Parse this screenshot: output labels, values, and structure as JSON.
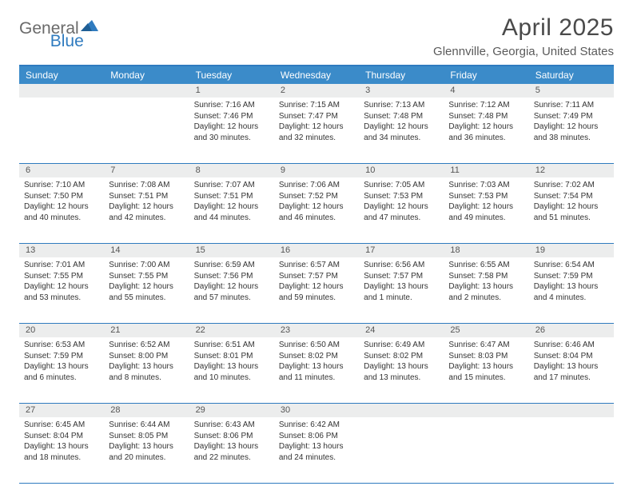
{
  "logo": {
    "text1": "General",
    "text2": "Blue"
  },
  "title": "April 2025",
  "location": "Glennville, Georgia, United States",
  "colors": {
    "accent": "#3b8bc9",
    "accent_border": "#2f7bbf",
    "daynum_bg": "#eceded",
    "text_dark": "#333333",
    "text_mid": "#5a5a5a"
  },
  "daysOfWeek": [
    "Sunday",
    "Monday",
    "Tuesday",
    "Wednesday",
    "Thursday",
    "Friday",
    "Saturday"
  ],
  "weeks": [
    [
      null,
      null,
      {
        "n": "1",
        "sr": "7:16 AM",
        "ss": "7:46 PM",
        "dl": "12 hours and 30 minutes."
      },
      {
        "n": "2",
        "sr": "7:15 AM",
        "ss": "7:47 PM",
        "dl": "12 hours and 32 minutes."
      },
      {
        "n": "3",
        "sr": "7:13 AM",
        "ss": "7:48 PM",
        "dl": "12 hours and 34 minutes."
      },
      {
        "n": "4",
        "sr": "7:12 AM",
        "ss": "7:48 PM",
        "dl": "12 hours and 36 minutes."
      },
      {
        "n": "5",
        "sr": "7:11 AM",
        "ss": "7:49 PM",
        "dl": "12 hours and 38 minutes."
      }
    ],
    [
      {
        "n": "6",
        "sr": "7:10 AM",
        "ss": "7:50 PM",
        "dl": "12 hours and 40 minutes."
      },
      {
        "n": "7",
        "sr": "7:08 AM",
        "ss": "7:51 PM",
        "dl": "12 hours and 42 minutes."
      },
      {
        "n": "8",
        "sr": "7:07 AM",
        "ss": "7:51 PM",
        "dl": "12 hours and 44 minutes."
      },
      {
        "n": "9",
        "sr": "7:06 AM",
        "ss": "7:52 PM",
        "dl": "12 hours and 46 minutes."
      },
      {
        "n": "10",
        "sr": "7:05 AM",
        "ss": "7:53 PM",
        "dl": "12 hours and 47 minutes."
      },
      {
        "n": "11",
        "sr": "7:03 AM",
        "ss": "7:53 PM",
        "dl": "12 hours and 49 minutes."
      },
      {
        "n": "12",
        "sr": "7:02 AM",
        "ss": "7:54 PM",
        "dl": "12 hours and 51 minutes."
      }
    ],
    [
      {
        "n": "13",
        "sr": "7:01 AM",
        "ss": "7:55 PM",
        "dl": "12 hours and 53 minutes."
      },
      {
        "n": "14",
        "sr": "7:00 AM",
        "ss": "7:55 PM",
        "dl": "12 hours and 55 minutes."
      },
      {
        "n": "15",
        "sr": "6:59 AM",
        "ss": "7:56 PM",
        "dl": "12 hours and 57 minutes."
      },
      {
        "n": "16",
        "sr": "6:57 AM",
        "ss": "7:57 PM",
        "dl": "12 hours and 59 minutes."
      },
      {
        "n": "17",
        "sr": "6:56 AM",
        "ss": "7:57 PM",
        "dl": "13 hours and 1 minute."
      },
      {
        "n": "18",
        "sr": "6:55 AM",
        "ss": "7:58 PM",
        "dl": "13 hours and 2 minutes."
      },
      {
        "n": "19",
        "sr": "6:54 AM",
        "ss": "7:59 PM",
        "dl": "13 hours and 4 minutes."
      }
    ],
    [
      {
        "n": "20",
        "sr": "6:53 AM",
        "ss": "7:59 PM",
        "dl": "13 hours and 6 minutes."
      },
      {
        "n": "21",
        "sr": "6:52 AM",
        "ss": "8:00 PM",
        "dl": "13 hours and 8 minutes."
      },
      {
        "n": "22",
        "sr": "6:51 AM",
        "ss": "8:01 PM",
        "dl": "13 hours and 10 minutes."
      },
      {
        "n": "23",
        "sr": "6:50 AM",
        "ss": "8:02 PM",
        "dl": "13 hours and 11 minutes."
      },
      {
        "n": "24",
        "sr": "6:49 AM",
        "ss": "8:02 PM",
        "dl": "13 hours and 13 minutes."
      },
      {
        "n": "25",
        "sr": "6:47 AM",
        "ss": "8:03 PM",
        "dl": "13 hours and 15 minutes."
      },
      {
        "n": "26",
        "sr": "6:46 AM",
        "ss": "8:04 PM",
        "dl": "13 hours and 17 minutes."
      }
    ],
    [
      {
        "n": "27",
        "sr": "6:45 AM",
        "ss": "8:04 PM",
        "dl": "13 hours and 18 minutes."
      },
      {
        "n": "28",
        "sr": "6:44 AM",
        "ss": "8:05 PM",
        "dl": "13 hours and 20 minutes."
      },
      {
        "n": "29",
        "sr": "6:43 AM",
        "ss": "8:06 PM",
        "dl": "13 hours and 22 minutes."
      },
      {
        "n": "30",
        "sr": "6:42 AM",
        "ss": "8:06 PM",
        "dl": "13 hours and 24 minutes."
      },
      null,
      null,
      null
    ]
  ],
  "labels": {
    "sunrise": "Sunrise:",
    "sunset": "Sunset:",
    "daylight": "Daylight:"
  }
}
